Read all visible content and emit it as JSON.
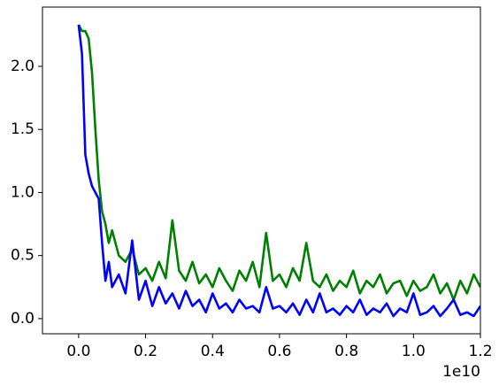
{
  "chart_data": {
    "type": "line",
    "x": [
      0,
      0.01,
      0.02,
      0.03,
      0.04,
      0.05,
      0.06,
      0.07,
      0.08,
      0.09,
      0.1,
      0.12,
      0.14,
      0.16,
      0.18,
      0.2,
      0.22,
      0.24,
      0.26,
      0.28,
      0.3,
      0.32,
      0.34,
      0.36,
      0.38,
      0.4,
      0.42,
      0.44,
      0.46,
      0.48,
      0.5,
      0.52,
      0.54,
      0.56,
      0.58,
      0.6,
      0.62,
      0.64,
      0.66,
      0.68,
      0.7,
      0.72,
      0.74,
      0.76,
      0.78,
      0.8,
      0.82,
      0.84,
      0.86,
      0.88,
      0.9,
      0.92,
      0.94,
      0.96,
      0.98,
      1.0,
      1.02,
      1.04,
      1.06,
      1.08,
      1.1,
      1.12,
      1.14,
      1.16,
      1.18,
      1.2
    ],
    "series": [
      {
        "color": "#008000",
        "values": [
          2.33,
          2.28,
          2.28,
          2.22,
          1.95,
          1.5,
          1.1,
          0.85,
          0.75,
          0.6,
          0.7,
          0.5,
          0.45,
          0.55,
          0.35,
          0.4,
          0.3,
          0.45,
          0.32,
          0.78,
          0.38,
          0.3,
          0.45,
          0.28,
          0.35,
          0.25,
          0.4,
          0.3,
          0.22,
          0.38,
          0.3,
          0.45,
          0.25,
          0.68,
          0.3,
          0.35,
          0.25,
          0.4,
          0.3,
          0.6,
          0.3,
          0.25,
          0.35,
          0.22,
          0.3,
          0.25,
          0.38,
          0.2,
          0.3,
          0.25,
          0.35,
          0.2,
          0.28,
          0.3,
          0.18,
          0.3,
          0.22,
          0.25,
          0.35,
          0.2,
          0.28,
          0.15,
          0.3,
          0.2,
          0.35,
          0.25
        ]
      },
      {
        "color": "#0000ff",
        "values": [
          2.33,
          2.1,
          1.3,
          1.15,
          1.05,
          1.0,
          0.95,
          0.6,
          0.3,
          0.45,
          0.25,
          0.35,
          0.2,
          0.62,
          0.15,
          0.3,
          0.1,
          0.25,
          0.12,
          0.2,
          0.08,
          0.22,
          0.1,
          0.15,
          0.05,
          0.2,
          0.08,
          0.12,
          0.05,
          0.15,
          0.08,
          0.1,
          0.05,
          0.25,
          0.08,
          0.1,
          0.05,
          0.12,
          0.03,
          0.15,
          0.05,
          0.2,
          0.05,
          0.08,
          0.03,
          0.1,
          0.05,
          0.15,
          0.03,
          0.08,
          0.05,
          0.12,
          0.02,
          0.08,
          0.05,
          0.2,
          0.03,
          0.05,
          0.1,
          0.02,
          0.08,
          0.15,
          0.03,
          0.05,
          0.02,
          0.1
        ]
      }
    ],
    "xlim": [
      -0.108,
      1.2
    ],
    "ylim": [
      -0.12,
      2.47
    ],
    "xticks": [
      {
        "value": 0,
        "label": "0.0"
      },
      {
        "value": 0.2,
        "label": "0.2"
      },
      {
        "value": 0.4,
        "label": "0.4"
      },
      {
        "value": 0.6,
        "label": "0.6"
      },
      {
        "value": 0.8,
        "label": "0.8"
      },
      {
        "value": 1.0,
        "label": "1.0"
      },
      {
        "value": 1.2,
        "label": "1.2"
      }
    ],
    "yticks": [
      {
        "value": 0,
        "label": "0.0"
      },
      0.5,
      {
        "value": 1.0,
        "label": "1.0"
      },
      1.5,
      {
        "value": 2.0,
        "label": "2.0"
      }
    ],
    "x_offset_label": "1e10",
    "grid": false
  }
}
